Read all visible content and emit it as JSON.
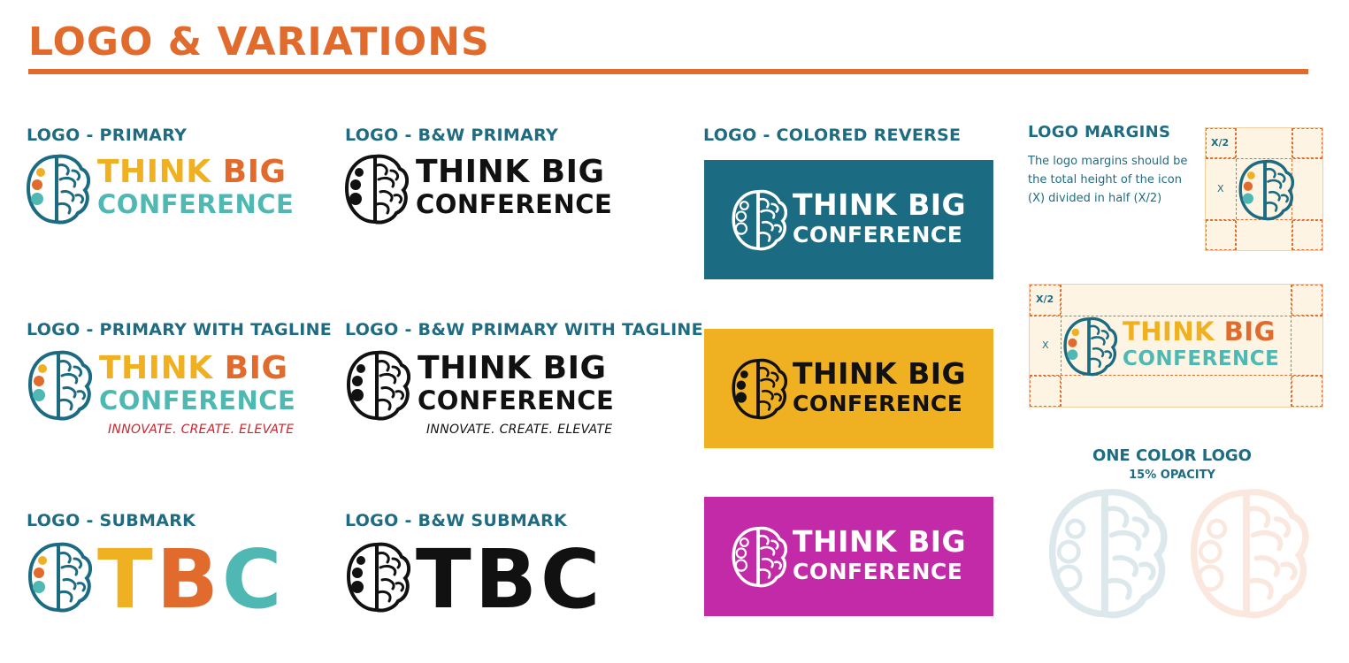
{
  "header": {
    "title": "LOGO & VARIATIONS"
  },
  "labels": {
    "primary": "LOGO - PRIMARY",
    "bw_primary": "LOGO - B&W PRIMARY",
    "colored_reverse": "LOGO - COLORED REVERSE",
    "margins": "LOGO MARGINS",
    "primary_tagline": "LOGO - PRIMARY WITH TAGLINE",
    "bw_primary_tagline": "LOGO - B&W PRIMARY WITH TAGLINE",
    "submark": "LOGO - SUBMARK",
    "bw_submark": "LOGO - B&W SUBMARK"
  },
  "wordmark": {
    "think": "THINK",
    "big": "BIG",
    "think_big": "THINK BIG",
    "conference": "CONFERENCE"
  },
  "tagline": "INNOVATE. CREATE. ELEVATE",
  "submark": {
    "t": "T",
    "b": "B",
    "c": "C",
    "full": "TBC"
  },
  "margins": {
    "description": "The logo margins should be the total height of the icon (X) divided in half (X/2)",
    "half_label": "X/2",
    "x_label": "X"
  },
  "one_color": {
    "title": "ONE COLOR LOGO",
    "subtitle": "15% OPACITY"
  },
  "colors": {
    "teal_dark": "#1b6b82",
    "yellow": "#efb022",
    "orange": "#e06b2c",
    "teal_light": "#4fb8b3",
    "magenta": "#c32aa8",
    "tagline_red": "#c8262f"
  }
}
